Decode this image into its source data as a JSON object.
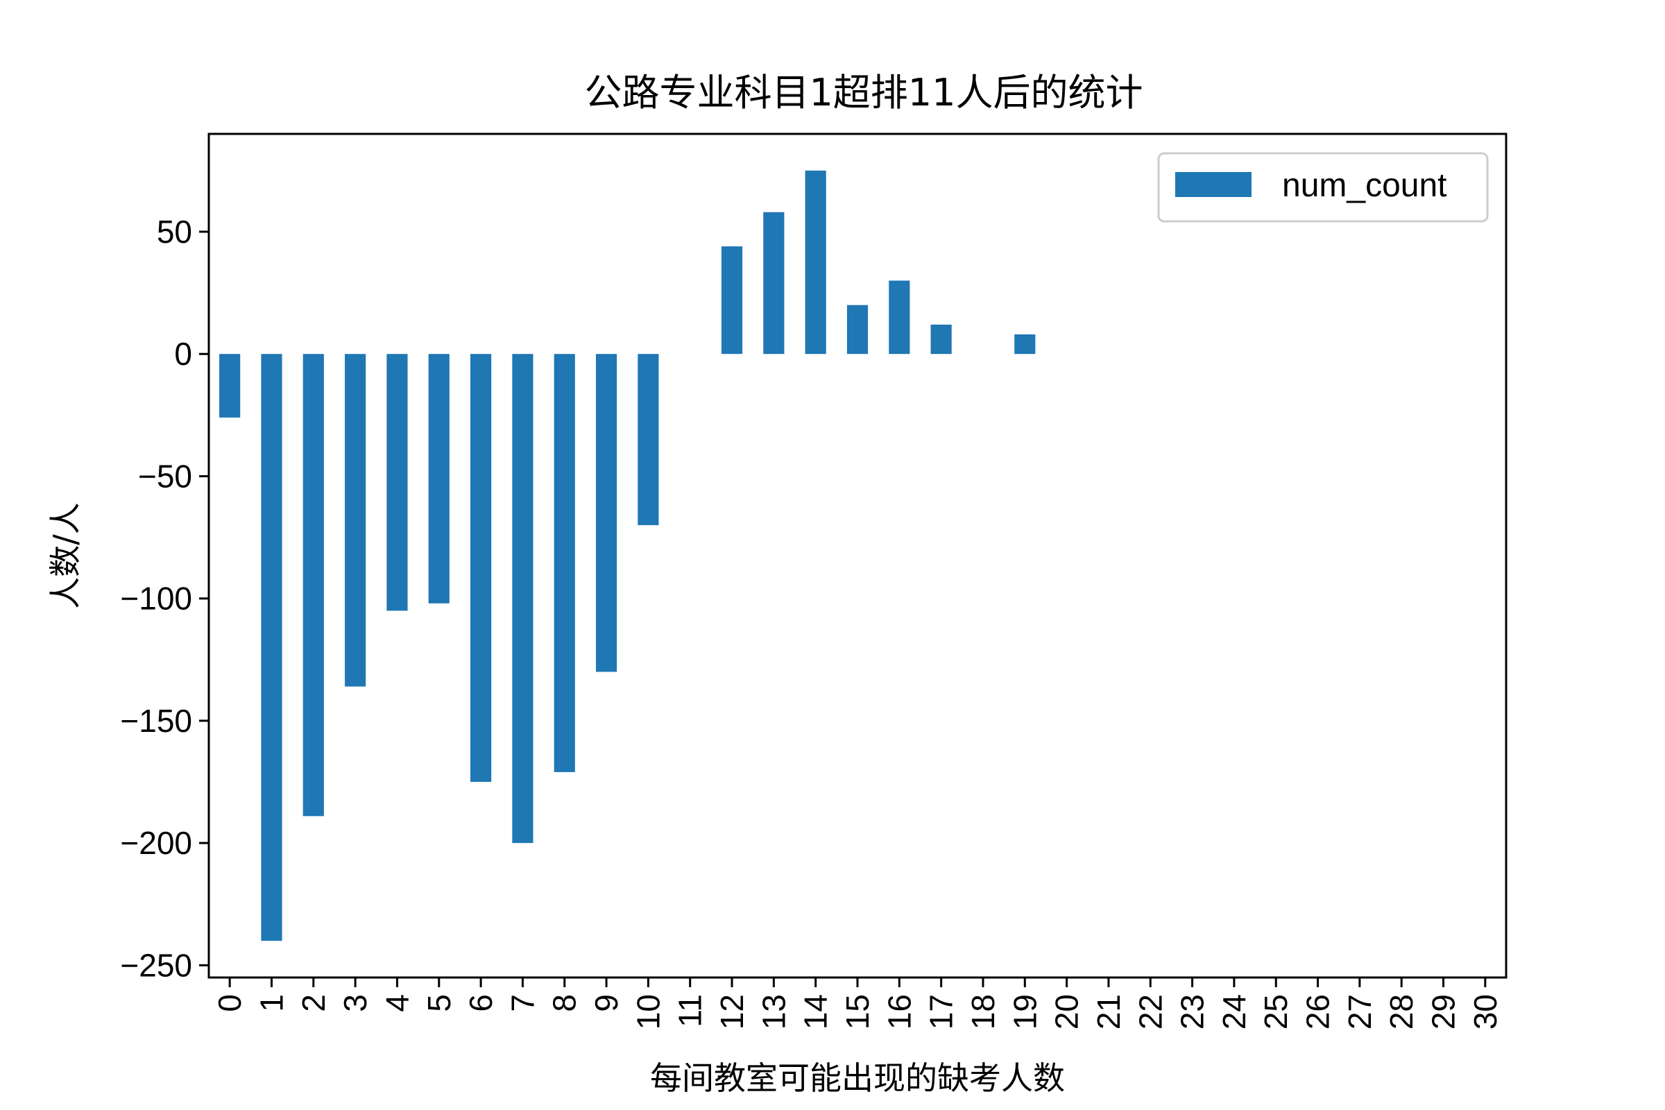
{
  "chart_data": {
    "type": "bar",
    "title": "公路专业科目1超排11人后的统计",
    "xlabel": "每间教室可能出现的缺考人数",
    "ylabel": "人数/人",
    "categories": [
      "0",
      "1",
      "2",
      "3",
      "4",
      "5",
      "6",
      "7",
      "8",
      "9",
      "10",
      "11",
      "12",
      "13",
      "14",
      "15",
      "16",
      "17",
      "18",
      "19",
      "20",
      "21",
      "22",
      "23",
      "24",
      "25",
      "26",
      "27",
      "28",
      "29",
      "30"
    ],
    "series": [
      {
        "name": "num_count",
        "color": "#1f77b4",
        "values": [
          -26,
          -240,
          -189,
          -136,
          -105,
          -102,
          -175,
          -200,
          -171,
          -130,
          -70,
          0,
          44,
          58,
          75,
          20,
          30,
          12,
          0,
          8,
          0,
          0,
          0,
          0,
          0,
          0,
          0,
          0,
          0,
          0,
          0
        ]
      }
    ],
    "ylim": [
      -255,
      90
    ],
    "yticks": [
      -250,
      -200,
      -150,
      -100,
      -50,
      0,
      50
    ],
    "ytick_labels": [
      "−250",
      "−200",
      "−150",
      "−100",
      "−50",
      "0",
      "50"
    ],
    "legend_position": "top-right",
    "grid": false
  }
}
